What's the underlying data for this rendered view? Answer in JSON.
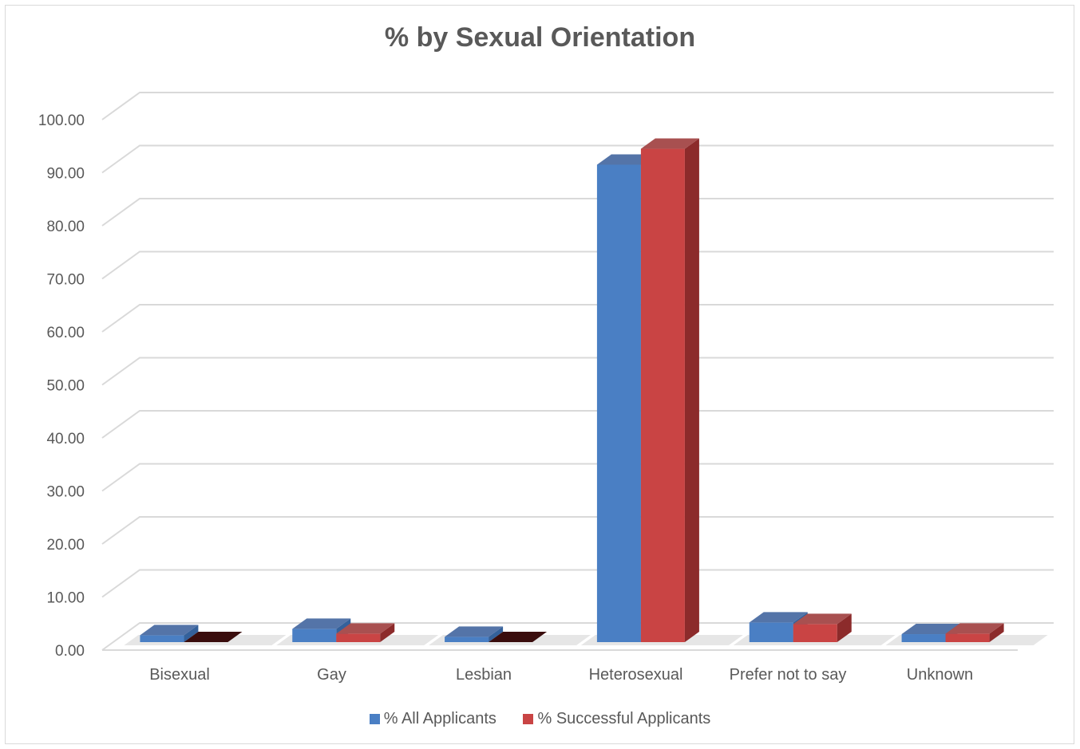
{
  "chart_data": {
    "type": "bar",
    "title": "% by Sexual Orientation",
    "categories": [
      "Bisexual",
      "Gay",
      "Lesbian",
      "Heterosexual",
      "Prefer not to say",
      "Unknown"
    ],
    "series": [
      {
        "name": "% All Applicants",
        "values": [
          1.3,
          2.5,
          1.0,
          90.0,
          3.7,
          1.5
        ]
      },
      {
        "name": "% Successful Applicants",
        "values": [
          0.0,
          1.6,
          0.0,
          93.0,
          3.4,
          1.6
        ]
      }
    ],
    "ylim": [
      0,
      100
    ],
    "yticks": [
      "0.00",
      "10.00",
      "20.00",
      "30.00",
      "40.00",
      "50.00",
      "60.00",
      "70.00",
      "80.00",
      "90.00",
      "100.00"
    ],
    "grid": true,
    "legend_position": "bottom",
    "colors": {
      "series1_front": "#4a7fc4",
      "series1_side": "#34619b",
      "series1_top": "#5474a8",
      "series2_front": "#c94444",
      "series2_side": "#8c2b2b",
      "series2_top": "#a85050",
      "gridline": "#d9d9d9",
      "text": "#595959"
    }
  }
}
